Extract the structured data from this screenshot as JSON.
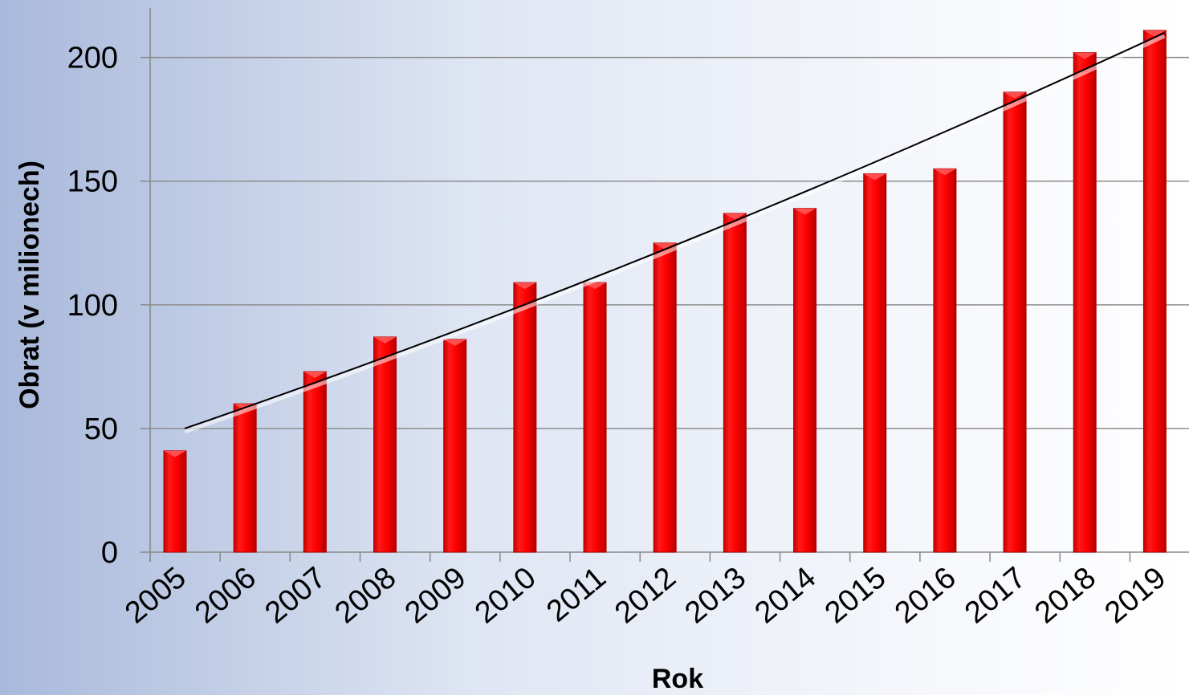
{
  "chart_data": {
    "type": "bar",
    "title": "",
    "xlabel": "Rok",
    "ylabel": "Obrat (v milionech)",
    "categories": [
      "2005",
      "2006",
      "2007",
      "2008",
      "2009",
      "2010",
      "2011",
      "2012",
      "2013",
      "2014",
      "2015",
      "2016",
      "2017",
      "2018",
      "2019"
    ],
    "values": [
      41,
      60,
      73,
      87,
      86,
      109,
      109,
      125,
      137,
      139,
      153,
      155,
      186,
      202,
      211
    ],
    "ylim": [
      0,
      220
    ],
    "yticks": [
      0,
      50,
      100,
      150,
      200
    ],
    "grid": true,
    "legend": "none",
    "trendline": {
      "type": "polynomial",
      "start_value": 50,
      "end_value": 210
    },
    "colors": {
      "bar": "#ff0000",
      "bar_edge": "#b00000",
      "trend": "#000000",
      "grid": "#8c8c8c"
    }
  }
}
